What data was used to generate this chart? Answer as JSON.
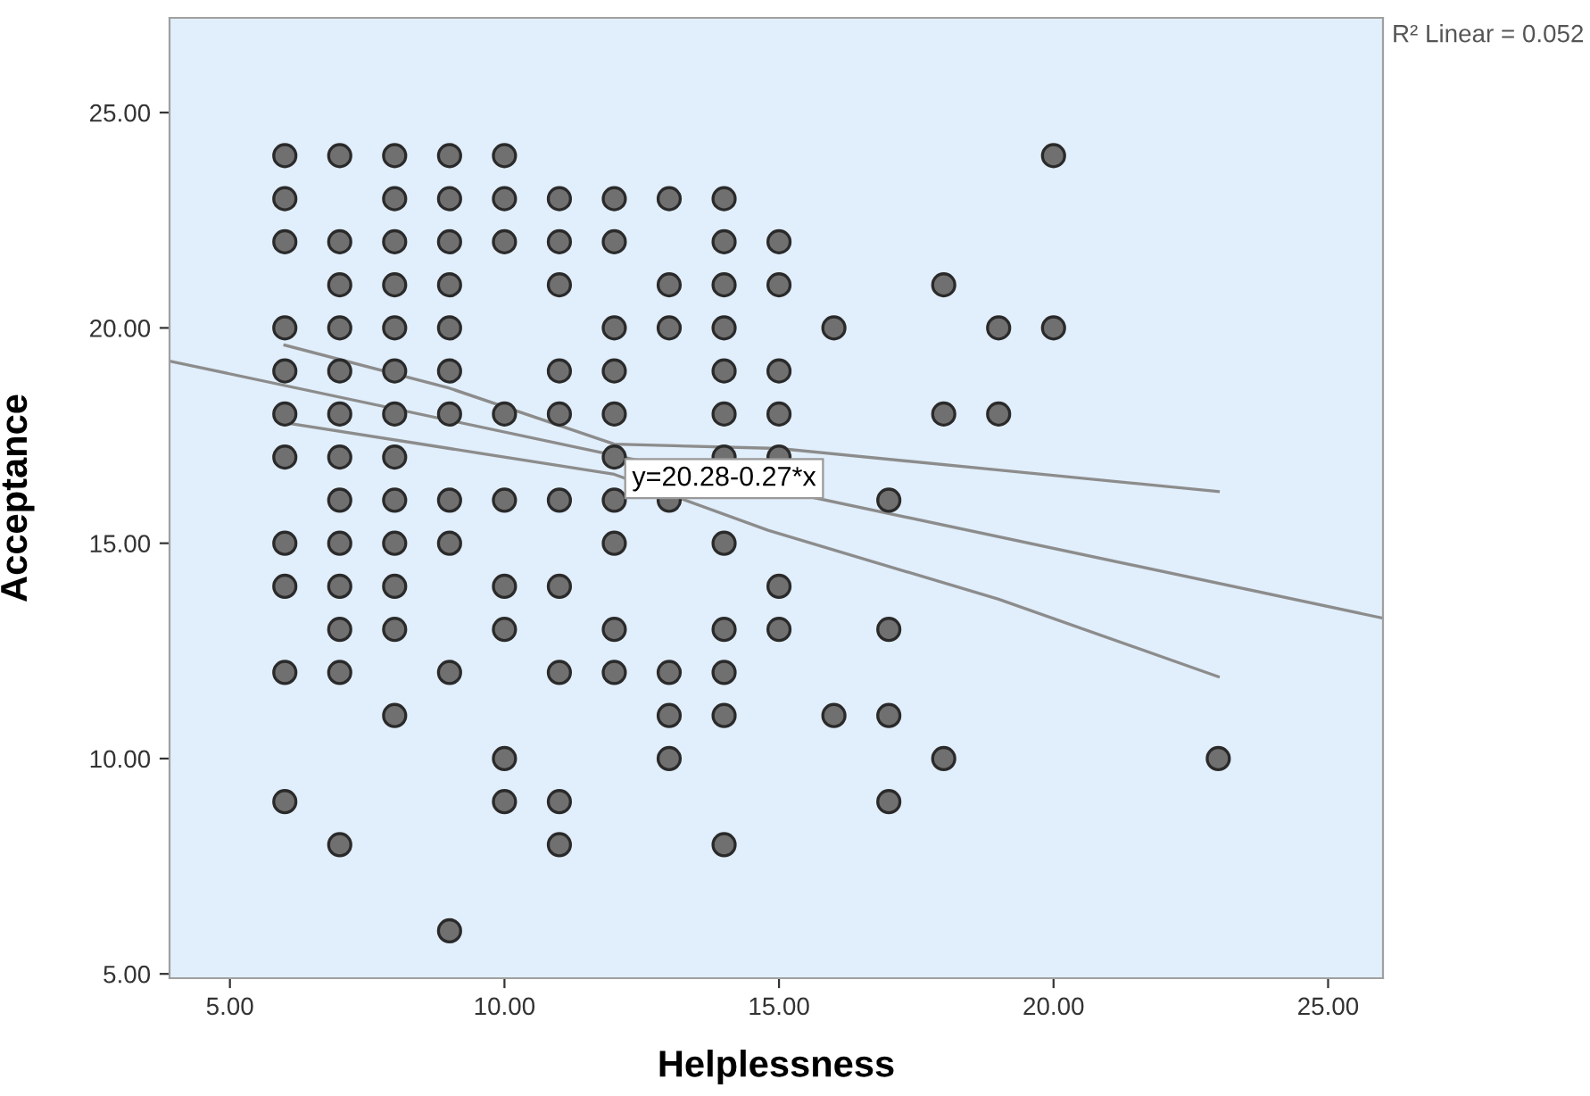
{
  "chart_data": {
    "type": "scatter",
    "xlabel": "Helplessness",
    "ylabel": "Acceptance",
    "xlim": [
      3.9,
      26
    ],
    "ylim": [
      4.9,
      27.2
    ],
    "xticks": [
      {
        "value": 5,
        "label": "5.00"
      },
      {
        "value": 10,
        "label": "10.00"
      },
      {
        "value": 15,
        "label": "15.00"
      },
      {
        "value": 20,
        "label": "20.00"
      },
      {
        "value": 25,
        "label": "25.00"
      }
    ],
    "yticks": [
      {
        "value": 5,
        "label": "5.00"
      },
      {
        "value": 10,
        "label": "10.00"
      },
      {
        "value": 15,
        "label": "15.00"
      },
      {
        "value": 20,
        "label": "20.00"
      },
      {
        "value": 25,
        "label": "25.00"
      }
    ],
    "grid": false,
    "legend": false,
    "marker": "circle",
    "series": [
      {
        "color": "#707070",
        "x": [
          6,
          6,
          6,
          6,
          6,
          6,
          6,
          6,
          6,
          6,
          6,
          7,
          7,
          7,
          7,
          7,
          7,
          7,
          7,
          7,
          7,
          7,
          7,
          7,
          8,
          8,
          8,
          8,
          8,
          8,
          8,
          8,
          8,
          8,
          8,
          8,
          8,
          9,
          9,
          9,
          9,
          9,
          9,
          9,
          9,
          9,
          9,
          9,
          10,
          10,
          10,
          10,
          10,
          10,
          10,
          10,
          10,
          11,
          11,
          11,
          11,
          11,
          11,
          11,
          11,
          11,
          11,
          12,
          12,
          12,
          12,
          12,
          12,
          12,
          12,
          12,
          12,
          13,
          13,
          13,
          13,
          13,
          13,
          13,
          14,
          14,
          14,
          14,
          14,
          14,
          14,
          14,
          14,
          14,
          14,
          14,
          15,
          15,
          15,
          15,
          15,
          15,
          15,
          16,
          16,
          17,
          17,
          17,
          17,
          18,
          18,
          18,
          19,
          19,
          20,
          20,
          23
        ],
        "values": [
          24,
          23,
          22,
          20,
          19,
          18,
          17,
          15,
          14,
          12,
          9,
          24,
          22,
          21,
          20,
          19,
          18,
          17,
          16,
          15,
          14,
          13,
          12,
          8,
          24,
          23,
          22,
          21,
          20,
          19,
          18,
          17,
          16,
          15,
          14,
          13,
          11,
          24,
          23,
          22,
          21,
          20,
          19,
          18,
          16,
          15,
          12,
          6,
          24,
          23,
          22,
          18,
          16,
          14,
          13,
          10,
          9,
          23,
          22,
          21,
          19,
          18,
          16,
          14,
          12,
          9,
          8,
          23,
          22,
          20,
          19,
          18,
          17,
          16,
          15,
          13,
          12,
          23,
          21,
          20,
          16,
          12,
          11,
          10,
          23,
          22,
          21,
          20,
          19,
          18,
          17,
          15,
          13,
          12,
          11,
          8,
          22,
          21,
          19,
          18,
          17,
          14,
          13,
          20,
          11,
          16,
          13,
          11,
          9,
          21,
          18,
          10,
          20,
          18,
          24,
          20,
          10
        ]
      },
      {
        "type": "line",
        "color": "#8c8c8c",
        "marker": "none",
        "x": [
          3.9,
          26
        ],
        "values": [
          19.23,
          13.26
        ]
      },
      {
        "type": "line",
        "color": "#8c8c8c",
        "marker": "none",
        "x": [
          6,
          9,
          12,
          15,
          19,
          23
        ],
        "values": [
          19.6,
          18.6,
          17.3,
          17.2,
          16.7,
          16.2
        ]
      },
      {
        "type": "line",
        "color": "#8c8c8c",
        "marker": "none",
        "x": [
          6,
          9,
          12,
          14.8,
          19,
          23
        ],
        "values": [
          17.8,
          17.2,
          16.6,
          15.3,
          13.7,
          11.9
        ]
      }
    ],
    "annotations": [
      {
        "text": "y=20.28-0.27*x",
        "x": 14,
        "y": 16.5
      },
      "R² Linear = 0.052"
    ]
  }
}
